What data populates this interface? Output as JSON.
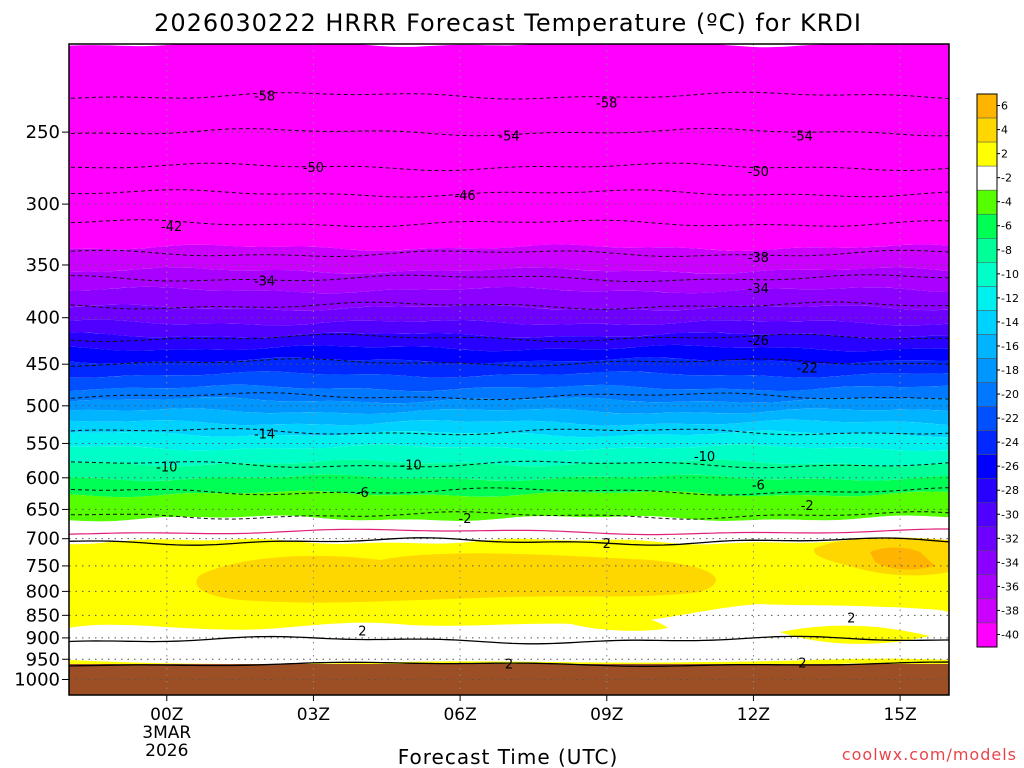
{
  "chart_data": {
    "type": "heatmap",
    "title": "2026030222 HRRR Forecast Temperature (ºC) for KRDI",
    "xlabel": "Forecast Time (UTC)",
    "ylabel": "",
    "credit": "coolwx.com/models",
    "x_range_hours": [
      -2,
      16
    ],
    "x_ticks": [
      {
        "hour": 0,
        "lines": [
          "00Z",
          "3MAR",
          "2026"
        ]
      },
      {
        "hour": 3,
        "lines": [
          "03Z"
        ]
      },
      {
        "hour": 6,
        "lines": [
          "06Z"
        ]
      },
      {
        "hour": 9,
        "lines": [
          "09Z"
        ]
      },
      {
        "hour": 12,
        "lines": [
          "12Z"
        ]
      },
      {
        "hour": 15,
        "lines": [
          "15Z"
        ]
      }
    ],
    "y_range_hpa": [
      200,
      1040
    ],
    "y_ticks": [
      250,
      300,
      350,
      400,
      450,
      500,
      550,
      600,
      650,
      700,
      750,
      800,
      850,
      900,
      950,
      1000
    ],
    "surface_pressure_hpa": 968,
    "colorbar": {
      "levels": [
        "6",
        "4",
        "2",
        "-2",
        "-4",
        "-6",
        "-8",
        "-10",
        "-12",
        "-14",
        "-16",
        "-18",
        "-20",
        "-22",
        "-24",
        "-26",
        "-28",
        "-30",
        "-32",
        "-34",
        "-36",
        "-38",
        "-40"
      ],
      "colors": [
        "#ffb400",
        "#ffd700",
        "#ffff00",
        "#ffffff",
        "#55ff00",
        "#00ff55",
        "#00ff96",
        "#00ffc8",
        "#00f0f0",
        "#00d2ff",
        "#00b4ff",
        "#0096ff",
        "#0078ff",
        "#0050ff",
        "#0028ff",
        "#0000ff",
        "#2800ff",
        "#5000ff",
        "#6e00ff",
        "#8c00ff",
        "#aa00ff",
        "#cc00ff",
        "#ff00ff"
      ]
    },
    "temperature_bands": [
      {
        "temp": -60,
        "color": "#ff00ff",
        "top": 200,
        "bottom": 335
      },
      {
        "temp": -38,
        "color": "#cc00ff",
        "top": 335,
        "bottom": 355
      },
      {
        "temp": -36,
        "color": "#aa00ff",
        "top": 355,
        "bottom": 373
      },
      {
        "temp": -34,
        "color": "#8c00ff",
        "top": 373,
        "bottom": 390
      },
      {
        "temp": -32,
        "color": "#6e00ff",
        "top": 390,
        "bottom": 405
      },
      {
        "temp": -30,
        "color": "#5000ff",
        "top": 405,
        "bottom": 418
      },
      {
        "temp": -28,
        "color": "#2800ff",
        "top": 418,
        "bottom": 432
      },
      {
        "temp": -26,
        "color": "#0000ff",
        "top": 432,
        "bottom": 446
      },
      {
        "temp": -24,
        "color": "#0028ff",
        "top": 446,
        "bottom": 462
      },
      {
        "temp": -22,
        "color": "#0050ff",
        "top": 462,
        "bottom": 478
      },
      {
        "temp": -20,
        "color": "#0078ff",
        "top": 478,
        "bottom": 493
      },
      {
        "temp": -18,
        "color": "#0096ff",
        "top": 493,
        "bottom": 507
      },
      {
        "temp": -16,
        "color": "#00b4ff",
        "top": 507,
        "bottom": 522
      },
      {
        "temp": -14,
        "color": "#00d2ff",
        "top": 522,
        "bottom": 537
      },
      {
        "temp": -12,
        "color": "#00f0f0",
        "top": 537,
        "bottom": 556
      },
      {
        "temp": -10,
        "color": "#00ffc8",
        "top": 556,
        "bottom": 578
      },
      {
        "temp": -8,
        "color": "#00ff96",
        "top": 578,
        "bottom": 600
      },
      {
        "temp": -6,
        "color": "#00ff55",
        "top": 600,
        "bottom": 625
      },
      {
        "temp": -4,
        "color": "#55ff00",
        "top": 625,
        "bottom": 665
      },
      {
        "temp": 0,
        "color": "#ffffff",
        "top": 665,
        "bottom": 705
      },
      {
        "temp": 3,
        "color": "#ffff00",
        "top": 705,
        "bottom": 968
      }
    ],
    "isotherms": [
      {
        "temp": -58,
        "pressure": 228,
        "label": "-58"
      },
      {
        "temp": -54,
        "pressure": 250,
        "label": "-54"
      },
      {
        "temp": -50,
        "pressure": 273,
        "label": "-50"
      },
      {
        "temp": -46,
        "pressure": 292,
        "label": "-46"
      },
      {
        "temp": -42,
        "pressure": 315,
        "label": "-42"
      },
      {
        "temp": -38,
        "pressure": 340,
        "label": "-38"
      },
      {
        "temp": -34,
        "pressure": 362,
        "label": "-34"
      },
      {
        "temp": -30,
        "pressure": 388,
        "label": ""
      },
      {
        "temp": -26,
        "pressure": 421,
        "label": "-26"
      },
      {
        "temp": -22,
        "pressure": 448,
        "label": "-22"
      },
      {
        "temp": -18,
        "pressure": 488,
        "label": ""
      },
      {
        "temp": -14,
        "pressure": 534,
        "label": "-14"
      },
      {
        "temp": -10,
        "pressure": 580,
        "label": "-10"
      },
      {
        "temp": -6,
        "pressure": 621,
        "label": "-6"
      },
      {
        "temp": -2,
        "pressure": 660,
        "label": "-2"
      },
      {
        "temp": 2,
        "pressure": 705,
        "label": "2"
      }
    ],
    "contour_labels": [
      {
        "text": "-58",
        "hour": 2.0,
        "pressure": 228
      },
      {
        "text": "-58",
        "hour": 9.0,
        "pressure": 232
      },
      {
        "text": "-54",
        "hour": 7.0,
        "pressure": 252
      },
      {
        "text": "-54",
        "hour": 13.0,
        "pressure": 252
      },
      {
        "text": "-50",
        "hour": 3.0,
        "pressure": 273
      },
      {
        "text": "-50",
        "hour": 12.1,
        "pressure": 276
      },
      {
        "text": "-46",
        "hour": 6.1,
        "pressure": 293
      },
      {
        "text": "-42",
        "hour": 0.1,
        "pressure": 317
      },
      {
        "text": "-38",
        "hour": 12.1,
        "pressure": 343
      },
      {
        "text": "-34",
        "hour": 2.0,
        "pressure": 364
      },
      {
        "text": "-34",
        "hour": 12.1,
        "pressure": 371
      },
      {
        "text": "-26",
        "hour": 12.1,
        "pressure": 423
      },
      {
        "text": "-22",
        "hour": 13.1,
        "pressure": 454
      },
      {
        "text": "-14",
        "hour": 2.0,
        "pressure": 536
      },
      {
        "text": "-10",
        "hour": 0.0,
        "pressure": 583
      },
      {
        "text": "-10",
        "hour": 5.0,
        "pressure": 580
      },
      {
        "text": "-10",
        "hour": 11.0,
        "pressure": 568
      },
      {
        "text": "-6",
        "hour": 4.0,
        "pressure": 622
      },
      {
        "text": "-6",
        "hour": 12.1,
        "pressure": 610
      },
      {
        "text": "-2",
        "hour": 6.1,
        "pressure": 664
      },
      {
        "text": "-2",
        "hour": 13.1,
        "pressure": 643
      },
      {
        "text": "2",
        "hour": 9.0,
        "pressure": 708
      },
      {
        "text": "2",
        "hour": 4.0,
        "pressure": 883
      },
      {
        "text": "2",
        "hour": 14.0,
        "pressure": 855
      },
      {
        "text": "2",
        "hour": 7.0,
        "pressure": 960
      },
      {
        "text": "2",
        "hour": 13.0,
        "pressure": 958
      }
    ]
  }
}
